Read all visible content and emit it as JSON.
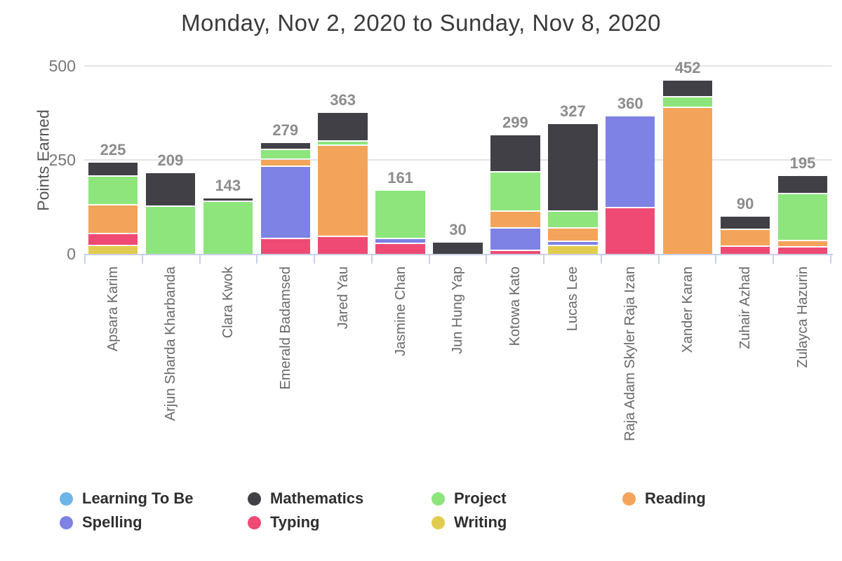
{
  "title": "Monday, Nov 2, 2020 to Sunday, Nov 8, 2020",
  "chart_data": {
    "type": "bar",
    "stacked": true,
    "title": "Monday, Nov 2, 2020 to Sunday, Nov 8, 2020",
    "xlabel": "",
    "ylabel": "Points Earned",
    "ylim": [
      0,
      500
    ],
    "yticks": [
      "500",
      "250",
      "0"
    ],
    "grid": "horizontal gridlines at 250 and 500",
    "legend_position": "bottom",
    "categories": [
      "Apsara Karim",
      "Arjun Sharda Kharbanda",
      "Clara Kwok",
      "Emerald Badamsed",
      "Jared Yau",
      "Jasmine Chan",
      "Jun Hung Yap",
      "Kotowa Kato",
      "Lucas Lee",
      "Raja Adam Skyler Raja Izan",
      "Xander Karan",
      "Zuhair Azhad",
      "Zulayca Hazurin"
    ],
    "totals": [
      225,
      209,
      143,
      279,
      363,
      161,
      30,
      299,
      327,
      360,
      452,
      90,
      195
    ],
    "stack_order_bottom_to_top": [
      "Writing",
      "Typing",
      "Spelling",
      "Reading",
      "Project",
      "Mathematics",
      "Learning To Be"
    ],
    "series": [
      {
        "name": "Learning To Be",
        "color": "#6cb5e8",
        "values": [
          0,
          0,
          0,
          0,
          0,
          0,
          0,
          0,
          0,
          0,
          0,
          0,
          0
        ]
      },
      {
        "name": "Mathematics",
        "color": "#404046",
        "values": [
          33,
          85,
          5,
          15,
          72,
          0,
          30,
          95,
          228,
          0,
          40,
          31,
          45
        ]
      },
      {
        "name": "Project",
        "color": "#8de57c",
        "values": [
          72,
          124,
          138,
          22,
          8,
          125,
          0,
          100,
          40,
          0,
          25,
          0,
          121
        ]
      },
      {
        "name": "Reading",
        "color": "#f4a45a",
        "values": [
          72,
          0,
          0,
          15,
          238,
          0,
          0,
          40,
          31,
          0,
          387,
          40,
          13
        ]
      },
      {
        "name": "Spelling",
        "color": "#7d82e4",
        "values": [
          0,
          0,
          0,
          188,
          0,
          10,
          0,
          56,
          8,
          240,
          0,
          0,
          0
        ]
      },
      {
        "name": "Typing",
        "color": "#ee4a74",
        "values": [
          28,
          0,
          0,
          39,
          45,
          26,
          0,
          8,
          0,
          120,
          0,
          19,
          16
        ]
      },
      {
        "name": "Writing",
        "color": "#e2cc4f",
        "values": [
          20,
          0,
          0,
          0,
          0,
          0,
          0,
          0,
          20,
          0,
          0,
          0,
          0
        ]
      }
    ]
  },
  "styles": {
    "axis_color": "#c9d0e8",
    "grid_color": "#e4e4e4",
    "tick_label_color": "#767676",
    "value_label_color": "#8c8c8c",
    "title_color": "#3a3a3a",
    "x_label_color": "#696969",
    "legend_text_color": "#2f2f2f",
    "background": "#ffffff"
  }
}
